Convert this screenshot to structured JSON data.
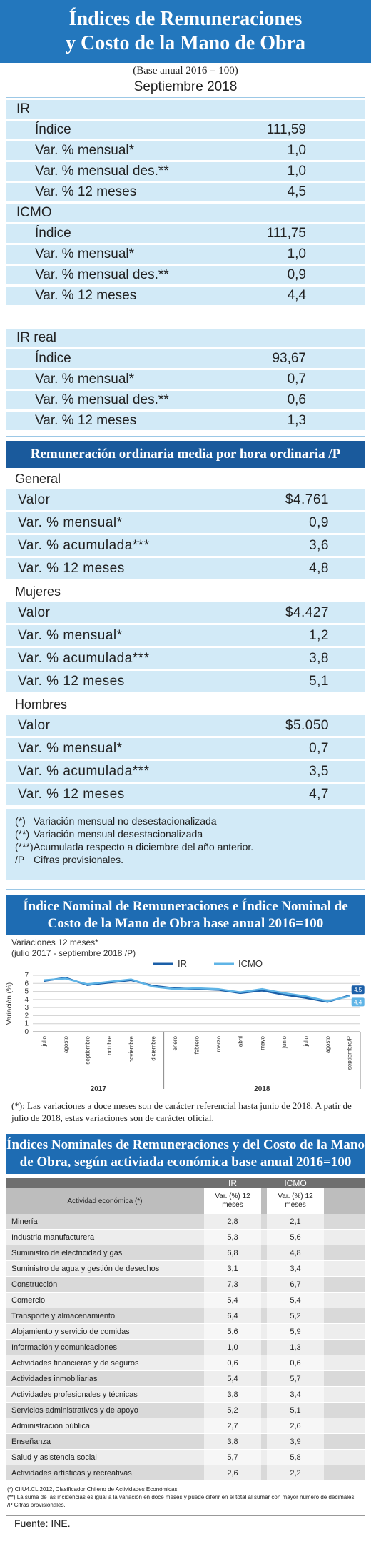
{
  "header": {
    "title_lines": [
      "Índices de Remuneraciones",
      "y Costo de la Mano de Obra"
    ],
    "base": "(Base anual 2016 = 100)",
    "period": "Septiembre 2018"
  },
  "indices": {
    "sections": [
      {
        "name": "IR",
        "rows": [
          [
            "Índice",
            "111,59"
          ],
          [
            "Var. % mensual*",
            "1,0"
          ],
          [
            "Var. % mensual des.**",
            "1,0"
          ],
          [
            "Var. % 12 meses",
            "4,5"
          ]
        ]
      },
      {
        "name": "ICMO",
        "rows": [
          [
            "Índice",
            "111,75"
          ],
          [
            "Var. % mensual*",
            "1,0"
          ],
          [
            "Var. % mensual des.**",
            "0,9"
          ],
          [
            "Var. % 12 meses",
            "4,4"
          ]
        ]
      },
      {
        "name": "IR real",
        "rows": [
          [
            "Índice",
            "93,67"
          ],
          [
            "Var. % mensual*",
            "0,7"
          ],
          [
            "Var. % mensual des.**",
            "0,6"
          ],
          [
            "Var. % 12 meses",
            "1,3"
          ]
        ]
      }
    ]
  },
  "remuneracion": {
    "title": "Remuneración ordinaria media por hora ordinaria /P",
    "groups": [
      {
        "name": "General",
        "rows": [
          [
            "Valor",
            "$4.761"
          ],
          [
            "Var. % mensual*",
            "0,9"
          ],
          [
            "Var. % acumulada***",
            "3,6"
          ],
          [
            "Var. % 12 meses",
            "4,8"
          ]
        ]
      },
      {
        "name": "Mujeres",
        "rows": [
          [
            "Valor",
            "$4.427"
          ],
          [
            "Var. % mensual*",
            "1,2"
          ],
          [
            "Var. % acumulada***",
            "3,8"
          ],
          [
            "Var. % 12 meses",
            "5,1"
          ]
        ]
      },
      {
        "name": "Hombres",
        "rows": [
          [
            "Valor",
            "$5.050"
          ],
          [
            "Var. % mensual*",
            "0,7"
          ],
          [
            "Var. % acumulada***",
            "3,5"
          ],
          [
            "Var. % 12 meses",
            "4,7"
          ]
        ]
      }
    ],
    "notes": [
      [
        "(*)",
        "Variación mensual no desestacionalizada"
      ],
      [
        "(**)",
        "Variación mensual desestacionalizada"
      ],
      [
        "(***)",
        "Acumulada respecto a diciembre del año anterior."
      ],
      [
        "/P",
        "Cifras provisionales."
      ]
    ]
  },
  "chart_data": {
    "type": "line",
    "title": "Índice Nominal de Remuneraciones e Índice Nominal de Costo de la Mano de Obra base anual 2016=100",
    "subtitle": "Variaciones 12 meses*",
    "period": "(julio 2017 - septiembre 2018 /P)",
    "y_label": "Variación (%)",
    "categories": [
      "julio",
      "agosto",
      "septiembre",
      "octubre",
      "noviembre",
      "diciembre",
      "enero",
      "febrero",
      "marzo",
      "abril",
      "mayo",
      "junio",
      "julio",
      "agosto",
      "septiembre/P"
    ],
    "years": [
      {
        "label": "2017",
        "from": 0,
        "to": 5
      },
      {
        "label": "2018",
        "from": 6,
        "to": 14
      }
    ],
    "series": [
      {
        "name": "IR",
        "color": "#1b5fa8",
        "values": [
          6.3,
          6.7,
          5.8,
          6.1,
          6.4,
          5.7,
          5.4,
          5.3,
          5.2,
          4.8,
          5.1,
          4.6,
          4.2,
          3.7,
          4.5
        ],
        "value_labels": [
          null,
          null,
          null,
          null,
          null,
          null,
          null,
          null,
          null,
          null,
          null,
          null,
          null,
          null,
          "4,5"
        ]
      },
      {
        "name": "ICMO",
        "color": "#5fb4e6",
        "values": [
          6.4,
          6.6,
          5.9,
          6.2,
          6.5,
          5.6,
          5.3,
          5.4,
          5.3,
          4.9,
          5.3,
          4.8,
          4.4,
          3.8,
          4.4
        ],
        "value_labels": [
          null,
          null,
          null,
          null,
          null,
          null,
          null,
          null,
          null,
          null,
          null,
          null,
          null,
          null,
          "4,4"
        ]
      }
    ],
    "ylim": [
      0,
      7
    ],
    "yticks": [
      0,
      1,
      2,
      3,
      4,
      5,
      6,
      7
    ],
    "grid": true,
    "footnote": "(*): Las variaciones a doce meses son de carácter referencial hasta junio de 2018. A patir de julio de 2018, estas variaciones son de carácter oficial."
  },
  "table": {
    "title": "Índices Nominales de Remuneraciones y del Costo de la Mano de Obra, según activiada económica base anual 2016=100",
    "groups": [
      "IR",
      "ICMO"
    ],
    "columns": [
      "Actividad económica (*)",
      "Var. (%) 12 meses",
      "Var. (%) 12 meses"
    ],
    "rows": [
      [
        "Minería",
        "2,8",
        "2,1"
      ],
      [
        "Industria manufacturera",
        "5,3",
        "5,6"
      ],
      [
        "Suministro de electricidad y gas",
        "6,8",
        "4,8"
      ],
      [
        "Suministro de agua y gestión de desechos",
        "3,1",
        "3,4"
      ],
      [
        "Construcción",
        "7,3",
        "6,7"
      ],
      [
        "Comercio",
        "5,4",
        "5,4"
      ],
      [
        "Transporte y almacenamiento",
        "6,4",
        "5,2"
      ],
      [
        "Alojamiento y servicio de comidas",
        "5,6",
        "5,9"
      ],
      [
        "Información y comunicaciones",
        "1,0",
        "1,3"
      ],
      [
        "Actividades financieras y de seguros",
        "0,6",
        "0,6"
      ],
      [
        "Actividades inmobiliarias",
        "5,4",
        "5,7"
      ],
      [
        "Actividades profesionales y técnicas",
        "3,8",
        "3,4"
      ],
      [
        "Servicios administrativos y de apoyo",
        "5,2",
        "5,1"
      ],
      [
        "Administración pública",
        "2,7",
        "2,6"
      ],
      [
        "Enseñanza",
        "3,8",
        "3,9"
      ],
      [
        "Salud y asistencia social",
        "5,7",
        "5,8"
      ],
      [
        "Actividades artísticas y recreativas",
        "2,6",
        "2,2"
      ]
    ],
    "notes": [
      "(*) CIIU4.CL 2012, Clasificador Chileno de Actividades Económicas.",
      "(**) La suma de las incidencias es igual a la variación en doce meses y puede diferir en el total al sumar con mayor número de decimales.",
      "/P Cifras provisionales."
    ]
  },
  "source": "Fuente: INE."
}
